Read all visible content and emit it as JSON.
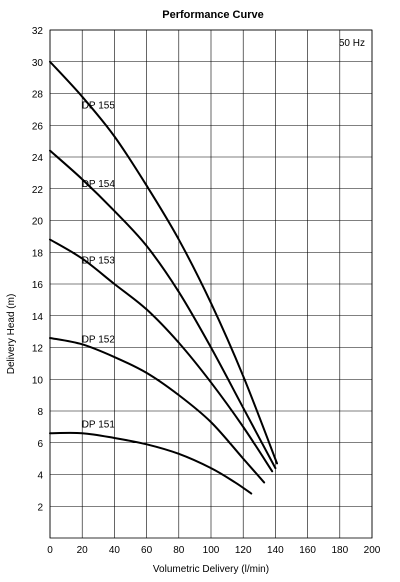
{
  "chart_data": {
    "type": "line",
    "title": "Performance Curve",
    "xlabel": "Volumetric Delivery (l/min)",
    "ylabel": "Delivery Head (m)",
    "annotation": "50 Hz",
    "xlim": [
      0,
      200
    ],
    "ylim": [
      0,
      32
    ],
    "x_ticks": [
      0,
      20,
      40,
      60,
      80,
      100,
      120,
      140,
      160,
      180,
      200
    ],
    "y_ticks": [
      2,
      4,
      6,
      8,
      10,
      12,
      14,
      16,
      18,
      20,
      22,
      24,
      26,
      28,
      30,
      32
    ],
    "x_tick_labels": [
      "0",
      "20",
      "40",
      "60",
      "80",
      "100",
      "120",
      "140",
      "160",
      "180",
      "200"
    ],
    "y_tick_labels": [
      "2",
      "4",
      "6",
      "8",
      "10",
      "12",
      "14",
      "16",
      "18",
      "20",
      "22",
      "24",
      "26",
      "28",
      "30",
      "32"
    ],
    "grid": true,
    "series": [
      {
        "name": "DP 151",
        "x": [
          0,
          20,
          40,
          60,
          80,
          100,
          115,
          125
        ],
        "y": [
          6.6,
          6.6,
          6.3,
          5.9,
          5.3,
          4.4,
          3.5,
          2.8
        ]
      },
      {
        "name": "DP 152",
        "x": [
          0,
          20,
          40,
          60,
          80,
          100,
          120,
          133
        ],
        "y": [
          12.6,
          12.2,
          11.4,
          10.4,
          9.0,
          7.3,
          5.0,
          3.5
        ]
      },
      {
        "name": "DP 153",
        "x": [
          0,
          20,
          40,
          60,
          80,
          100,
          120,
          138
        ],
        "y": [
          18.8,
          17.6,
          16.0,
          14.4,
          12.3,
          9.8,
          7.0,
          4.2
        ]
      },
      {
        "name": "DP 154",
        "x": [
          0,
          20,
          40,
          60,
          80,
          100,
          120,
          140
        ],
        "y": [
          24.4,
          22.6,
          20.6,
          18.4,
          15.5,
          12.0,
          8.2,
          4.4
        ]
      },
      {
        "name": "DP 155",
        "x": [
          0,
          20,
          40,
          60,
          80,
          100,
          120,
          141
        ],
        "y": [
          30.0,
          27.8,
          25.3,
          22.2,
          18.8,
          14.8,
          10.2,
          4.7
        ]
      }
    ]
  }
}
